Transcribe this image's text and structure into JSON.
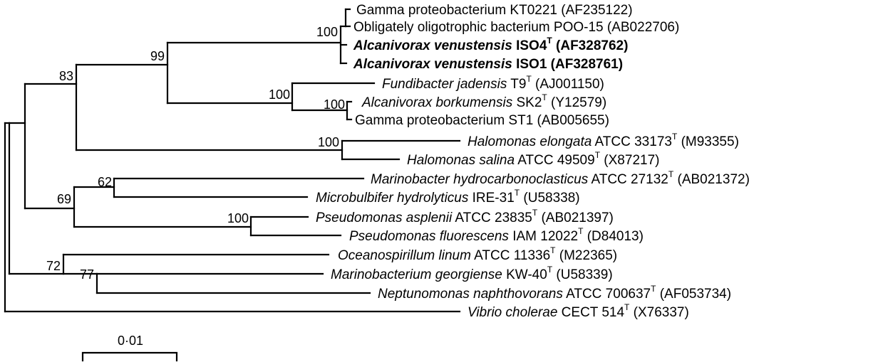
{
  "tree": {
    "taxa": [
      {
        "id": "t1",
        "parts": [
          {
            "text": "Gamma proteobacterium KT0221 (AF235122)",
            "style": "normal"
          }
        ]
      },
      {
        "id": "t2",
        "parts": [
          {
            "text": "Obligately oligotrophic bacterium POO-15 (AB022706)",
            "style": "normal"
          }
        ]
      },
      {
        "id": "t3",
        "parts": [
          {
            "text": "Alcanivorax venustensis",
            "style": "bold-italic"
          },
          {
            "text": " ISO4",
            "style": "bold"
          },
          {
            "text": "T",
            "style": "bold-sup"
          },
          {
            "text": " (AF328762)",
            "style": "bold"
          }
        ]
      },
      {
        "id": "t4",
        "parts": [
          {
            "text": "Alcanivorax venustensis",
            "style": "bold-italic"
          },
          {
            "text": " ISO1 (AF328761)",
            "style": "bold"
          }
        ]
      },
      {
        "id": "t5",
        "parts": [
          {
            "text": "Fundibacter jadensis",
            "style": "italic"
          },
          {
            "text": " T9",
            "style": "normal"
          },
          {
            "text": "T",
            "style": "sup"
          },
          {
            "text": " (AJ001150)",
            "style": "normal"
          }
        ]
      },
      {
        "id": "t6",
        "parts": [
          {
            "text": "Alcanivorax borkumensis",
            "style": "italic"
          },
          {
            "text": " SK2",
            "style": "normal"
          },
          {
            "text": "T",
            "style": "sup"
          },
          {
            "text": " (Y12579)",
            "style": "normal"
          }
        ]
      },
      {
        "id": "t7",
        "parts": [
          {
            "text": "Gamma proteobacterium ST1 (AB005655)",
            "style": "normal"
          }
        ]
      },
      {
        "id": "t8",
        "parts": [
          {
            "text": "Halomonas elongata",
            "style": "italic"
          },
          {
            "text": " ATCC 33173",
            "style": "normal"
          },
          {
            "text": "T",
            "style": "sup"
          },
          {
            "text": " (M93355)",
            "style": "normal"
          }
        ]
      },
      {
        "id": "t9",
        "parts": [
          {
            "text": "Halomonas salina",
            "style": "italic"
          },
          {
            "text": " ATCC 49509",
            "style": "normal"
          },
          {
            "text": "T",
            "style": "sup"
          },
          {
            "text": " (X87217)",
            "style": "normal"
          }
        ]
      },
      {
        "id": "t10",
        "parts": [
          {
            "text": "Marinobacter hydrocarbonoclasticus",
            "style": "italic"
          },
          {
            "text": " ATCC 27132",
            "style": "normal"
          },
          {
            "text": "T",
            "style": "sup"
          },
          {
            "text": " (AB021372)",
            "style": "normal"
          }
        ]
      },
      {
        "id": "t11",
        "parts": [
          {
            "text": "Microbulbifer hydrolyticus",
            "style": "italic"
          },
          {
            "text": " IRE-31",
            "style": "normal"
          },
          {
            "text": "T",
            "style": "sup"
          },
          {
            "text": " (U58338)",
            "style": "normal"
          }
        ]
      },
      {
        "id": "t12",
        "parts": [
          {
            "text": "Pseudomonas asplenii",
            "style": "italic"
          },
          {
            "text": " ATCC 23835",
            "style": "normal"
          },
          {
            "text": "T",
            "style": "sup"
          },
          {
            "text": " (AB021397)",
            "style": "normal"
          }
        ]
      },
      {
        "id": "t13",
        "parts": [
          {
            "text": "Pseudomonas fluorescens",
            "style": "italic"
          },
          {
            "text": " IAM 12022",
            "style": "normal"
          },
          {
            "text": "T",
            "style": "sup"
          },
          {
            "text": " (D84013)",
            "style": "normal"
          }
        ]
      },
      {
        "id": "t14",
        "parts": [
          {
            "text": "Oceanospirillum linum",
            "style": "italic"
          },
          {
            "text": " ATCC 11336",
            "style": "normal"
          },
          {
            "text": "T",
            "style": "sup"
          },
          {
            "text": " (M22365)",
            "style": "normal"
          }
        ]
      },
      {
        "id": "t15",
        "parts": [
          {
            "text": "Marinobacterium georgiense",
            "style": "italic"
          },
          {
            "text": " KW-40",
            "style": "normal"
          },
          {
            "text": "T",
            "style": "sup"
          },
          {
            "text": " (U58339)",
            "style": "normal"
          }
        ]
      },
      {
        "id": "t16",
        "parts": [
          {
            "text": "Neptunomonas naphthovorans",
            "style": "italic"
          },
          {
            "text": " ATCC 700637",
            "style": "normal"
          },
          {
            "text": "T",
            "style": "sup"
          },
          {
            "text": " (AF053734)",
            "style": "normal"
          }
        ]
      },
      {
        "id": "t17",
        "parts": [
          {
            "text": "Vibrio cholerae",
            "style": "italic"
          },
          {
            "text": " CECT 514",
            "style": "normal"
          },
          {
            "text": "T",
            "style": "sup"
          },
          {
            "text": " (X76337)",
            "style": "normal"
          }
        ]
      }
    ],
    "bootstrap": {
      "n100a": "100",
      "n99": "99",
      "n83": "83",
      "n100b": "100",
      "n100c": "100",
      "n100d": "100",
      "n62": "62",
      "n69": "69",
      "n100e": "100",
      "n72": "72",
      "n77": "77"
    },
    "scale_bar": {
      "label": "0·01",
      "value": 0.01
    }
  }
}
